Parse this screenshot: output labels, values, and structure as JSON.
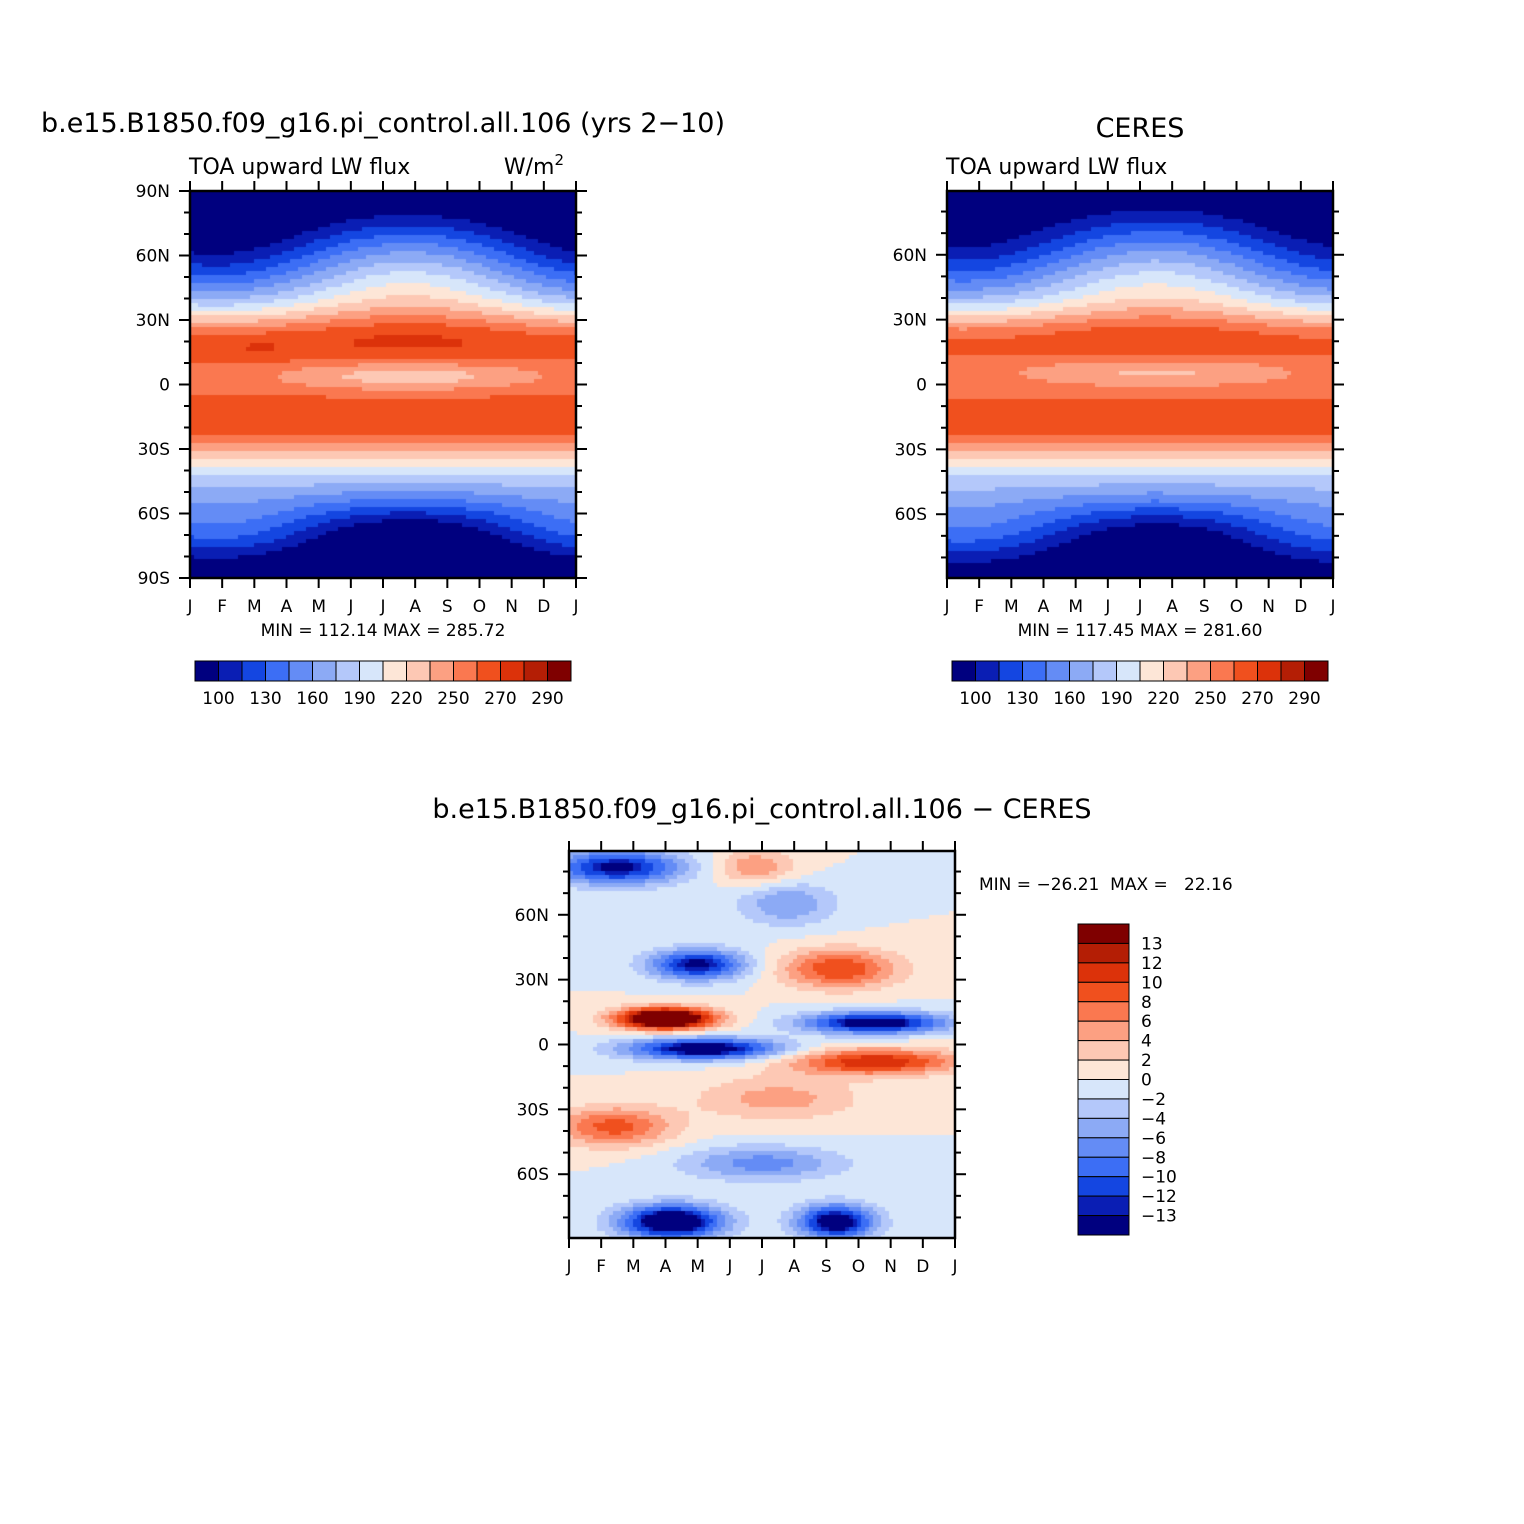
{
  "colors": {
    "cmap_mean": [
      "#00007f",
      "#0a1eb4",
      "#1446e1",
      "#3c6ef5",
      "#648cf5",
      "#8caaf5",
      "#b4c8fa",
      "#d7e6fa",
      "#fde6d7",
      "#fdc8b4",
      "#fca082",
      "#fa7850",
      "#f0501e",
      "#dc320a",
      "#b41e05",
      "#7f0000"
    ],
    "cmap_diff": [
      "#7f0000",
      "#b41e05",
      "#dc320a",
      "#f0501e",
      "#fa7850",
      "#fca082",
      "#fdc8b4",
      "#fde6d7",
      "#d7e6fa",
      "#b4c8fa",
      "#8caaf5",
      "#648cf5",
      "#3c6ef5",
      "#1446e1",
      "#0a1eb4",
      "#00007f"
    ]
  },
  "chart_data": [
    {
      "type": "heatmap",
      "title": "b.e15.B1850.f09_g16.pi_control.all.106 (yrs 2−10)",
      "left_label": "TOA upward LW flux",
      "right_label": "W/m",
      "right_label_sup": "2",
      "x_tick_labels": [
        "J",
        "F",
        "M",
        "A",
        "M",
        "J",
        "J",
        "A",
        "S",
        "O",
        "N",
        "D",
        "J"
      ],
      "y_tick_labels": [
        "90N",
        "60N",
        "30N",
        "0",
        "30S",
        "60S",
        "90S"
      ],
      "y_tick_values": [
        90,
        60,
        30,
        0,
        -30,
        -60,
        -90
      ],
      "xlim": [
        0,
        12
      ],
      "ylim": [
        -90,
        90
      ],
      "min_max": "MIN = 112.14  MAX = 285.72",
      "colorbar_labels": [
        "100",
        "130",
        "160",
        "190",
        "220",
        "250",
        "270",
        "290"
      ],
      "colorbar_levels": [
        100,
        110,
        120,
        130,
        140,
        150,
        160,
        170,
        180,
        190,
        200,
        210,
        220,
        230,
        240,
        250,
        260,
        270,
        280,
        290
      ]
    },
    {
      "type": "heatmap",
      "title": "CERES",
      "left_label": "TOA upward LW flux",
      "x_tick_labels": [
        "J",
        "F",
        "M",
        "A",
        "M",
        "J",
        "J",
        "A",
        "S",
        "O",
        "N",
        "D",
        "J"
      ],
      "y_tick_labels": [
        "60N",
        "30N",
        "0",
        "30S",
        "60S"
      ],
      "y_tick_values": [
        60,
        30,
        0,
        -30,
        -60
      ],
      "xlim": [
        0,
        12
      ],
      "ylim": [
        -89.5,
        89.5
      ],
      "min_max": "MIN = 117.45  MAX = 281.60",
      "colorbar_labels": [
        "100",
        "130",
        "160",
        "190",
        "220",
        "250",
        "270",
        "290"
      ],
      "colorbar_levels": [
        100,
        110,
        120,
        130,
        140,
        150,
        160,
        170,
        180,
        190,
        200,
        210,
        220,
        230,
        240,
        250,
        260,
        270,
        280,
        290
      ]
    },
    {
      "type": "heatmap",
      "title": "b.e15.B1850.f09_g16.pi_control.all.106 − CERES",
      "x_tick_labels": [
        "J",
        "F",
        "M",
        "A",
        "M",
        "J",
        "J",
        "A",
        "S",
        "O",
        "N",
        "D",
        "J"
      ],
      "y_tick_labels": [
        "60N",
        "30N",
        "0",
        "30S",
        "60S"
      ],
      "y_tick_values": [
        60,
        30,
        0,
        -30,
        -60
      ],
      "xlim": [
        0,
        12
      ],
      "ylim": [
        -89.5,
        89.5
      ],
      "min_max": "MIN = −26.21  MAX =   22.16",
      "colorbar_labels": [
        "13",
        "12",
        "10",
        "8",
        "6",
        "4",
        "2",
        "0",
        "−2",
        "−4",
        "−6",
        "−8",
        "−10",
        "−12",
        "−13"
      ],
      "colorbar_levels": [
        -15,
        -13,
        -12,
        -10,
        -8,
        -6,
        -4,
        -2,
        0,
        2,
        4,
        6,
        8,
        10,
        12,
        13,
        15
      ]
    }
  ]
}
